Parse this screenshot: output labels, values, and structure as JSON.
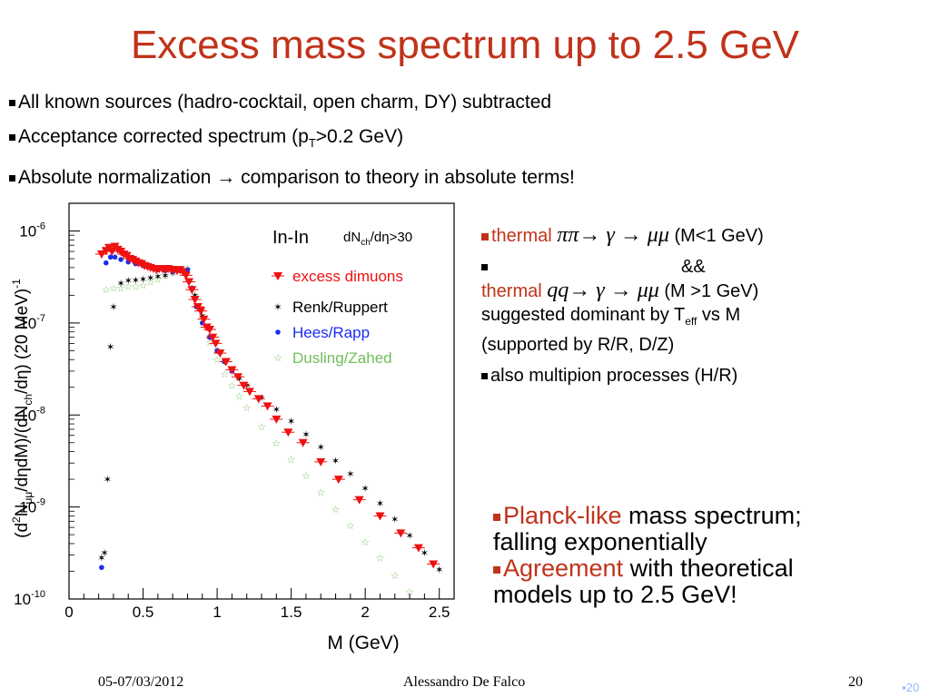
{
  "title": "Excess mass spectrum up to 2.5 GeV",
  "bullets": [
    {
      "text_a": "All known sources (hadro-cocktail, open charm, DY) subtracted"
    },
    {
      "text_a": "Acceptance corrected spectrum (p",
      "sub": "T",
      "text_b": ">0.2 GeV)"
    },
    {
      "text_a": "Absolute normalization → comparison to theory in absolute terms!"
    }
  ],
  "right_block": {
    "b1_word": "thermal",
    "b1_math": "ππ→ γ → μμ",
    "b1_tail": "(M<1 GeV)",
    "b2_amp": "&&",
    "b2_word": "thermal",
    "b2_math": "qq→ γ → μμ",
    "b2_tail": "(M >1 GeV)",
    "b2_line3_a": "suggested dominant by T",
    "b2_line3_sub": "eff",
    "b2_line3_b": " vs M",
    "b2_line4": "(supported by R/R, D/Z)",
    "b3": "also multipion processes (H/R)"
  },
  "conclusions": {
    "c1_red": "Planck-like",
    "c1_rest": " mass spectrum;",
    "c1_line2": "falling exponentially",
    "c2_red": "Agreement",
    "c2_rest": " with theoretical",
    "c2_line2": "models up to 2.5 GeV!"
  },
  "footer": {
    "date": "05-07/03/2012",
    "author": "Alessandro De Falco",
    "page": "20",
    "page_mark": "20"
  },
  "colors": {
    "accent": "#c0331a",
    "blue": "#1a2cf0",
    "green": "#6fbf5a"
  },
  "chart_data": {
    "type": "scatter",
    "yscale": "log",
    "xlabel": "M (GeV)",
    "ylabel_main": "(d",
    "ylabel_full": "(d²N_μμ/dηdM)/(dN_ch/dη) (20 MeV)⁻¹",
    "xlim": [
      0,
      2.6
    ],
    "ylim": [
      1e-10,
      2e-06
    ],
    "x_ticks": [
      "0",
      "0.5",
      "1",
      "1.5",
      "2",
      "2.5"
    ],
    "y_ticks": [
      "10",
      "10",
      "10",
      "10",
      "10"
    ],
    "y_tick_exps": [
      "-10",
      "-9",
      "-8",
      "-7",
      "-6"
    ],
    "label_system": "In-In",
    "label_cut_a": "dN",
    "label_cut_sub": "ch",
    "label_cut_b": "/dη>30",
    "series": [
      {
        "name": "excess dimuons",
        "color": "#ee1111",
        "marker": "triangle-down",
        "x": [
          0.22,
          0.25,
          0.27,
          0.29,
          0.31,
          0.33,
          0.35,
          0.37,
          0.39,
          0.41,
          0.43,
          0.45,
          0.47,
          0.49,
          0.51,
          0.53,
          0.55,
          0.57,
          0.59,
          0.61,
          0.63,
          0.65,
          0.67,
          0.69,
          0.71,
          0.73,
          0.75,
          0.77,
          0.79,
          0.81,
          0.83,
          0.85,
          0.87,
          0.89,
          0.91,
          0.93,
          0.95,
          0.97,
          0.99,
          1.02,
          1.06,
          1.1,
          1.14,
          1.18,
          1.22,
          1.28,
          1.34,
          1.4,
          1.48,
          1.58,
          1.7,
          1.82,
          1.96,
          2.1,
          2.24,
          2.36,
          2.46
        ],
        "y": [
          5.6e-07,
          6.1e-07,
          6.6e-07,
          6e-07,
          6.8e-07,
          6.3e-07,
          6e-07,
          5.6e-07,
          5.4e-07,
          5e-07,
          4.9e-07,
          4.7e-07,
          4.5e-07,
          4.4e-07,
          4.2e-07,
          4.1e-07,
          4e-07,
          3.9e-07,
          3.8e-07,
          3.9e-07,
          3.9e-07,
          3.8e-07,
          3.9e-07,
          3.8e-07,
          3.8e-07,
          3.7e-07,
          3.8e-07,
          3.6e-07,
          3.3e-07,
          2.8e-07,
          2.3e-07,
          1.8e-07,
          1.5e-07,
          1.35e-07,
          1.1e-07,
          9e-08,
          8.5e-08,
          7e-08,
          6e-08,
          4.7e-08,
          3.8e-08,
          3.1e-08,
          2.6e-08,
          2.1e-08,
          1.8e-08,
          1.5e-08,
          1.25e-08,
          9e-09,
          6.5e-09,
          5e-09,
          3.1e-09,
          2e-09,
          1.2e-09,
          8e-10,
          5.2e-10,
          3.6e-10,
          2.4e-10
        ]
      },
      {
        "name": "Renk/Ruppert",
        "color": "#000000",
        "marker": "star",
        "x": [
          0.22,
          0.24,
          0.26,
          0.28,
          0.3,
          0.35,
          0.4,
          0.45,
          0.5,
          0.55,
          0.6,
          0.65,
          0.7,
          0.75,
          0.8,
          0.85,
          0.9,
          0.95,
          1.0,
          1.05,
          1.1,
          1.15,
          1.2,
          1.3,
          1.4,
          1.5,
          1.6,
          1.7,
          1.8,
          1.9,
          2.0,
          2.1,
          2.2,
          2.3,
          2.4,
          2.5
        ],
        "y": [
          2.8e-10,
          3.2e-10,
          2e-09,
          5.5e-08,
          1.5e-07,
          2.7e-07,
          2.9e-07,
          2.95e-07,
          3e-07,
          3.1e-07,
          3.2e-07,
          3.3e-07,
          3.5e-07,
          3.7e-07,
          3.7e-07,
          2e-07,
          1.2e-07,
          7e-08,
          5e-08,
          3.8e-08,
          3e-08,
          2.5e-08,
          2.1e-08,
          1.55e-08,
          1.15e-08,
          8.6e-09,
          6.2e-09,
          4.5e-09,
          3.2e-09,
          2.3e-09,
          1.6e-09,
          1.1e-09,
          7.4e-10,
          4.9e-10,
          3.2e-10,
          2.1e-10
        ]
      },
      {
        "name": "Hees/Rapp",
        "color": "#1a2cf0",
        "marker": "circle",
        "x": [
          0.22,
          0.25,
          0.28,
          0.31,
          0.35,
          0.4,
          0.45,
          0.5,
          0.55,
          0.6,
          0.65,
          0.7,
          0.75,
          0.8,
          0.83,
          0.86,
          0.9,
          0.95,
          1.0,
          1.05,
          1.1
        ],
        "y": [
          2.2e-10,
          4.5e-07,
          5.2e-07,
          5.2e-07,
          4.9e-07,
          4.6e-07,
          4.4e-07,
          4.2e-07,
          4e-07,
          3.8e-07,
          3.7e-07,
          3.6e-07,
          3.7e-07,
          3.8e-07,
          2.4e-07,
          1.5e-07,
          1e-07,
          7e-08,
          5e-08,
          3.8e-08,
          3e-08
        ]
      },
      {
        "name": "Dusling/Zahed",
        "color": "#6fbf5a",
        "marker": "star-open",
        "x": [
          0.25,
          0.3,
          0.35,
          0.4,
          0.45,
          0.5,
          0.55,
          0.6,
          0.65,
          0.7,
          0.75,
          0.8,
          0.85,
          0.9,
          0.95,
          1.0,
          1.05,
          1.1,
          1.15,
          1.2,
          1.3,
          1.4,
          1.5,
          1.6,
          1.7,
          1.8,
          1.9,
          2.0,
          2.1,
          2.2,
          2.3
        ],
        "y": [
          2.3e-07,
          2.4e-07,
          2.4e-07,
          2.5e-07,
          2.5e-07,
          2.6e-07,
          2.8e-07,
          3e-07,
          3.3e-07,
          3.5e-07,
          3.8e-07,
          3.9e-07,
          2e-07,
          1.1e-07,
          6.2e-08,
          4e-08,
          2.8e-08,
          2.1e-08,
          1.6e-08,
          1.2e-08,
          7.5e-09,
          5e-09,
          3.3e-09,
          2.2e-09,
          1.45e-09,
          9.5e-10,
          6.3e-10,
          4.2e-10,
          2.8e-10,
          1.8e-10,
          1.2e-10
        ]
      }
    ]
  }
}
